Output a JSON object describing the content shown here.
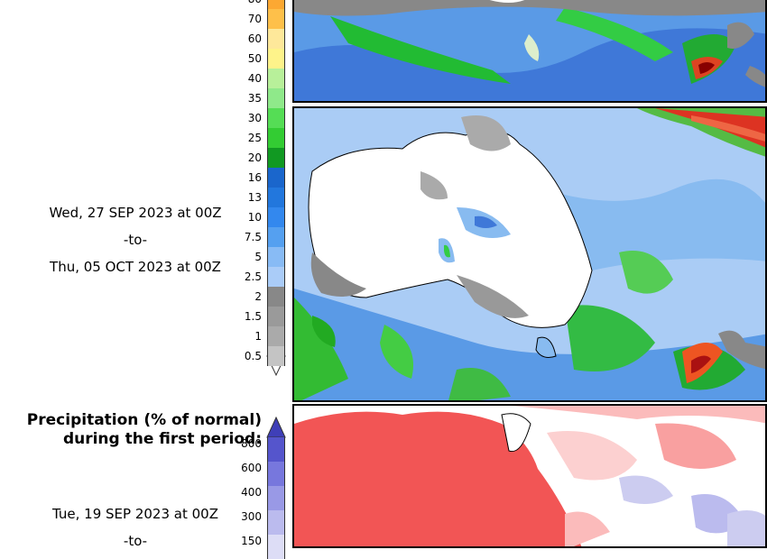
{
  "second_period": {
    "date_from": "Wed, 27 SEP 2023 at 00Z",
    "to_text": "-to-",
    "date_to": "Thu, 05 OCT 2023 at 00Z"
  },
  "precip_scale": {
    "ticks": [
      "70",
      "60",
      "50",
      "40",
      "35",
      "30",
      "25",
      "20",
      "16",
      "13",
      "10",
      "7.5",
      "5",
      "2.5",
      "2",
      "1.5",
      "1",
      "0.5"
    ],
    "colors": [
      "#fec04a",
      "#fee89a",
      "#fef38a",
      "#b8f09a",
      "#8fe98a",
      "#55dd55",
      "#33cc33",
      "#119922",
      "#1a66cc",
      "#2277dd",
      "#3388ee",
      "#55a0f0",
      "#88bbf5",
      "#aaccf8",
      "#888888",
      "#9a9a9a",
      "#aaaaaa",
      "#c4c4c4"
    ]
  },
  "anomaly": {
    "title_line1": "Precipitation (% of normal)",
    "title_line2": "during the first period:",
    "date_from": "Tue, 19 SEP 2023 at 00Z",
    "to_text": "-to-",
    "ticks": [
      "800",
      "600",
      "400",
      "300",
      "150"
    ],
    "colors": [
      "#5555cc",
      "#7777dd",
      "#9999e6",
      "#bbbbee",
      "#ddddf6"
    ]
  }
}
